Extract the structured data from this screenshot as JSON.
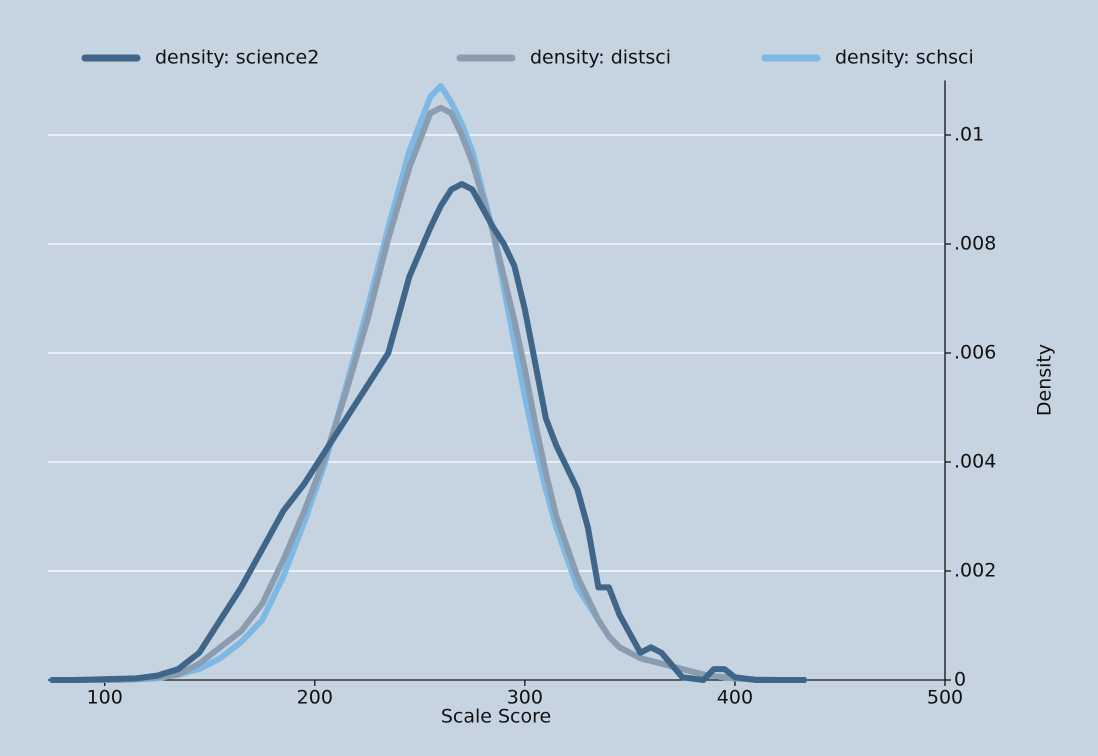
{
  "chart_data": {
    "type": "line",
    "x_label": "Scale Score",
    "y_label": "Density",
    "x": [
      75,
      85,
      95,
      105,
      115,
      125,
      135,
      145,
      155,
      165,
      175,
      185,
      195,
      205,
      215,
      225,
      235,
      245,
      255,
      260,
      265,
      270,
      275,
      285,
      290,
      295,
      300,
      305,
      310,
      315,
      325,
      330,
      335,
      340,
      345,
      355,
      360,
      365,
      375,
      385,
      390,
      395,
      400,
      410,
      420,
      433
    ],
    "series": [
      {
        "name": "density: science2",
        "color": "#3f6688",
        "values": [
          0,
          0,
          1e-05,
          2e-05,
          3e-05,
          8e-05,
          0.0002,
          0.0005,
          0.0011,
          0.0017,
          0.0024,
          0.0031,
          0.0036,
          0.0042,
          0.0048,
          0.0054,
          0.006,
          0.0074,
          0.0083,
          0.0087,
          0.009,
          0.0091,
          0.009,
          0.0083,
          0.008,
          0.0076,
          0.0068,
          0.0058,
          0.0048,
          0.0043,
          0.0035,
          0.0028,
          0.0017,
          0.0017,
          0.0012,
          0.0005,
          0.0006,
          0.0005,
          5e-05,
          0,
          0.0002,
          0.0002,
          5e-05,
          0,
          0,
          0
        ]
      },
      {
        "name": "density: distsci",
        "color": "#8a9cb0",
        "values": [
          0,
          0,
          0,
          0,
          2e-05,
          5e-05,
          0.0001,
          0.0003,
          0.0006,
          0.0009,
          0.0014,
          0.0022,
          0.0031,
          0.0041,
          0.0053,
          0.0066,
          0.0081,
          0.0094,
          0.0104,
          0.0105,
          0.0104,
          0.01,
          0.0095,
          0.0082,
          0.0074,
          0.0066,
          0.0057,
          0.0047,
          0.0038,
          0.003,
          0.0019,
          0.0015,
          0.0011,
          0.0008,
          0.0006,
          0.0004,
          0.00035,
          0.0003,
          0.0002,
          0.0001,
          7e-05,
          5e-05,
          3e-05,
          1e-05,
          0,
          0
        ]
      },
      {
        "name": "density: schsci",
        "color": "#7db9e4",
        "values": [
          0,
          0,
          0,
          0,
          1e-05,
          3e-05,
          0.0001,
          0.0002,
          0.0004,
          0.0007,
          0.0011,
          0.0019,
          0.0029,
          0.004,
          0.0054,
          0.0068,
          0.0083,
          0.0097,
          0.0107,
          0.0109,
          0.0106,
          0.0102,
          0.0097,
          0.0082,
          0.0072,
          0.0062,
          0.0052,
          0.0043,
          0.0035,
          0.0028,
          0.0017,
          0.0014,
          0.0011,
          0.0008,
          0.0006,
          0.0004,
          0.00035,
          0.0003,
          0.0002,
          0.0001,
          7e-05,
          5e-05,
          3e-05,
          1e-05,
          0,
          0
        ]
      }
    ],
    "xlim": [
      73,
      500
    ],
    "ylim": [
      0,
      0.011
    ],
    "xticks": [
      100,
      200,
      300,
      400,
      500
    ],
    "yticks": [
      0,
      {
        "value": 0.002,
        "label": ".002"
      },
      {
        "value": 0.004,
        "label": ".004"
      },
      {
        "value": 0.006,
        "label": ".006"
      },
      {
        "value": 0.008,
        "label": ".008"
      },
      {
        "value": 0.01,
        "label": ".01"
      }
    ],
    "grid": true,
    "y_axis_side": "right",
    "legend": "top",
    "background": "#c6d4e2"
  }
}
